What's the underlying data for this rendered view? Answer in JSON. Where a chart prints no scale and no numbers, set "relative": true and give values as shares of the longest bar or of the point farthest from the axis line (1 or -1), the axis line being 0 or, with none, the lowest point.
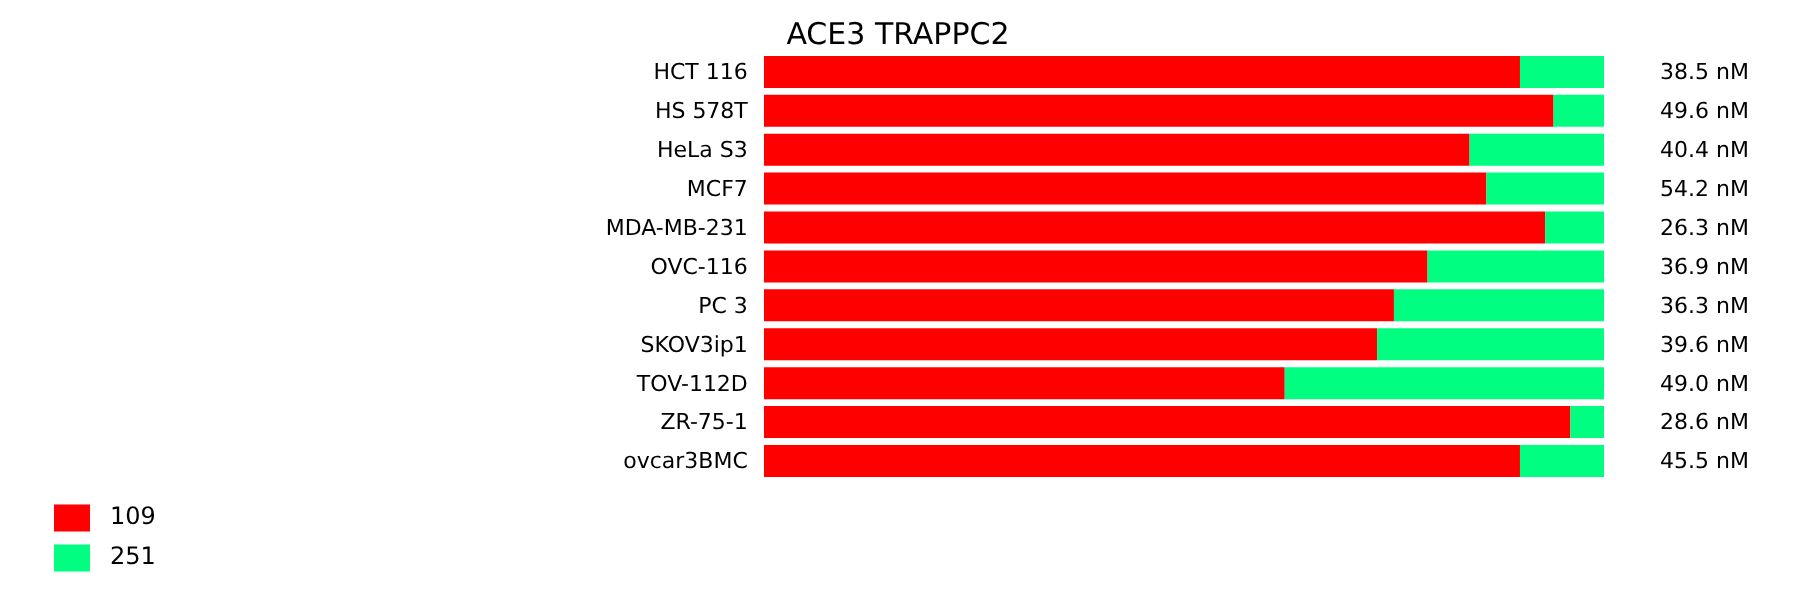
{
  "chart_data": {
    "type": "bar",
    "title": "ACE3 TRAPPC2",
    "orientation": "horizontal",
    "stacked": true,
    "relative": true,
    "legend": "bottom left",
    "categories": [
      "HCT 116",
      "HS 578T",
      "HeLa S3",
      "MCF7",
      "MDA-MB-231",
      "OVC-116",
      "PC 3",
      "SKOV3ip1",
      "TOV-112D",
      "ZR-75-1",
      "ovcar3BMC"
    ],
    "series": [
      {
        "name": "109",
        "color": "#ff0000",
        "values": [
          0.9,
          0.94,
          0.84,
          0.86,
          0.93,
          0.79,
          0.75,
          0.73,
          0.62,
          0.96,
          0.9
        ]
      },
      {
        "name": "251",
        "color": "#00ff80",
        "values": [
          0.1,
          0.06,
          0.16,
          0.14,
          0.07,
          0.21,
          0.25,
          0.27,
          0.38,
          0.04,
          0.1
        ]
      }
    ],
    "annotations": [
      "38.5 nM",
      "49.6 nM",
      "40.4 nM",
      "54.2 nM",
      "26.3 nM",
      "36.9 nM",
      "36.3 nM",
      "39.6 nM",
      "49.0 nM",
      "28.6 nM",
      "45.5 nM"
    ]
  }
}
